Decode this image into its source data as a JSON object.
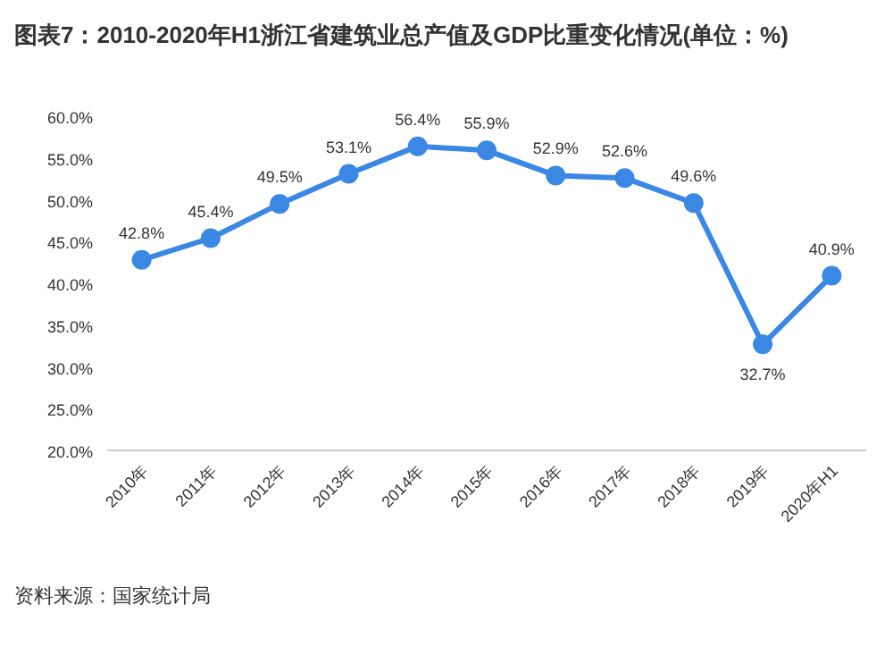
{
  "chart_data": {
    "type": "line",
    "title": "图表7：2010-2020年H1浙江省建筑业总产值及GDP比重变化情况(单位：%)",
    "categories": [
      "2010年",
      "2011年",
      "2012年",
      "2013年",
      "2014年",
      "2015年",
      "2016年",
      "2017年",
      "2018年",
      "2019年",
      "2020年H1"
    ],
    "series": [
      {
        "color": "#3b87e4",
        "values": [
          42.8,
          45.4,
          49.5,
          53.1,
          56.4,
          55.9,
          52.9,
          52.6,
          49.6,
          32.7,
          40.9
        ],
        "value_labels": [
          "42.8%",
          "45.4%",
          "49.5%",
          "53.1%",
          "56.4%",
          "55.9%",
          "52.9%",
          "52.6%",
          "49.6%",
          "32.7%",
          "40.9%"
        ]
      }
    ],
    "ylim": [
      20,
      60
    ],
    "yticks": [
      {
        "value": 20,
        "label": "20.0%"
      },
      {
        "value": 25,
        "label": "25.0%"
      },
      {
        "value": 30,
        "label": "30.0%"
      },
      {
        "value": 35,
        "label": "35.0%"
      },
      {
        "value": 40,
        "label": "40.0%"
      },
      {
        "value": 45,
        "label": "45.0%"
      },
      {
        "value": 50,
        "label": "50.0%"
      },
      {
        "value": 55,
        "label": "55.0%"
      },
      {
        "value": 60,
        "label": "60.0%"
      }
    ],
    "grid": false,
    "marker": "circle",
    "line_style": "solid",
    "annotations": [
      "资料来源：国家统计局"
    ]
  }
}
